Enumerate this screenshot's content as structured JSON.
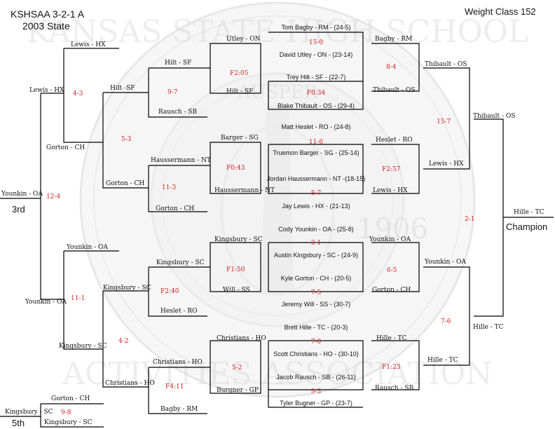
{
  "header": {
    "title_line1": "KSHSAA 3-2-1 A",
    "title_line2": "2003 State",
    "weight_label": "Weight Class",
    "weight_value": "152"
  },
  "seal": {
    "ring_text_top": "KANSAS STATE HIGH SCHOOL",
    "ring_text_bottom": "ACTIVITIES ASSOCIATION",
    "inner_text": "AUSPER",
    "year": "1906"
  },
  "first_round": [
    {
      "top": "Tom Bagby - RM - (24-5)",
      "bottom": "David Utley - ON - (23-14)",
      "score": "15-0"
    },
    {
      "top": "Trey Hilt - SF - (22-7)",
      "bottom": "Blake Thibault - OS - (29-4)",
      "score": "F0:34"
    },
    {
      "top": "Matt Heslet - RO - (24-8)",
      "bottom": "Truemon Barger - SG - (25-14)",
      "score": "11-6"
    },
    {
      "top": "Jordan Haussermann - NT -(18-15)",
      "bottom": "Jay Lewis - HX - (21-13)",
      "score": "8-7"
    },
    {
      "top": "Cody Younkin - OA - (25-8)",
      "bottom": "Austin Kingsbury - SC - (24-9)",
      "score": "3-1"
    },
    {
      "top": "Kyle Gorton - CH - (20-5)",
      "bottom": "Jeremy Will - SS - (30-7)",
      "score": "7-5"
    },
    {
      "top": "Brett Hille - TC - (20-3)",
      "bottom": "Scott Christians - HO - (30-10)",
      "score": "7-0"
    },
    {
      "top": "Jacob Rausch - SB - (26-11)",
      "bottom": "Tyler Bugner - GP - (23-7)",
      "score": "9-3"
    }
  ],
  "championship": {
    "right_round1": [
      "Bagby - RM",
      "Thibault - OS",
      "Heslet - RO",
      "Lewis - HX",
      "Younkin - OA",
      "Gorton - CH",
      "Hille - TC",
      "Rausch - SB"
    ],
    "right_round1_scores": [
      "8-4",
      "F2:57",
      "6-5",
      "F1:23"
    ],
    "semifinal": [
      "Thibault - OS",
      "Lewis - HX",
      "Younkin - OA",
      "Hille - TC"
    ],
    "semifinal_scores": [
      "15-7",
      "7-6"
    ],
    "finalists": [
      "Thibault - OS",
      "Hille - TC"
    ],
    "final_score": "2-1",
    "champion_name": "Hille - TC",
    "champion_label": "Champion"
  },
  "consolation": {
    "col1": [
      "Utley - ON",
      "Hilt - SF",
      "Barger - SG",
      "Haussermann - NT",
      "Kingsbury - SC",
      "Will - SS",
      "Christians - HO",
      "Burgner - GP"
    ],
    "col1_scores": [
      "F2:05",
      "F0:43",
      "F1:50",
      "5-2"
    ],
    "col2": [
      "Hilt - SF",
      "Rausch - SB",
      "Haussermann - NT",
      "Gorton - CH",
      "Kingsbury - SC",
      "Heslet - RO",
      "Christians - HO",
      "Bagby - RM"
    ],
    "col2_scores": [
      "9-7",
      "11-3",
      "F2:40",
      "F4:11"
    ],
    "col3": [
      "Lewis - HX",
      "Hilt -SF",
      "Gorton - CH",
      "Younkin - OA",
      "Kingsbury - SC",
      "Christians - HO"
    ],
    "col3_scores": [
      "5-3",
      "4-2"
    ],
    "col4": [
      "Lewis - HX",
      "Gorton - CH",
      "Younkin - OA",
      "Kingsbury - SC"
    ],
    "col4_scores": [
      "4-3",
      "11-1"
    ],
    "third_place": {
      "name": "Younkin - OA",
      "score": "12-4",
      "label": "3rd"
    },
    "fifth_place": {
      "opponent": "Gorton - CH",
      "name": "Kingsbury - SC",
      "lower": "Kingsbury - SC",
      "score": "9-8",
      "label": "5th"
    }
  }
}
